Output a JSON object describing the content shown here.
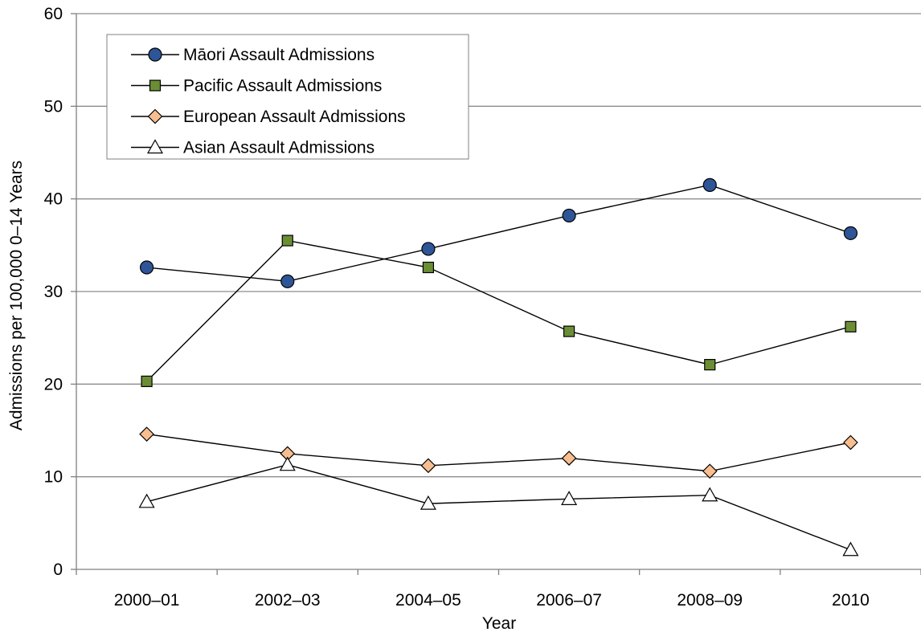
{
  "chart_data": {
    "type": "line",
    "title": "",
    "xlabel": "Year",
    "ylabel": "Admissions per 100,000 0–14 Years",
    "categories": [
      "2000–01",
      "2002–03",
      "2004–05",
      "2006–07",
      "2008–09",
      "2010"
    ],
    "ylim": [
      0,
      60
    ],
    "yticks": [
      0,
      10,
      20,
      30,
      40,
      50,
      60
    ],
    "grid": true,
    "legend_position": "top-left",
    "series": [
      {
        "name": "Māori Assault Admissions",
        "marker": "circle",
        "color": "#2e5597",
        "values": [
          32.6,
          31.1,
          34.6,
          38.2,
          41.5,
          36.3
        ]
      },
      {
        "name": "Pacific Assault Admissions",
        "marker": "square",
        "color": "#6b8e35",
        "values": [
          20.3,
          35.5,
          32.6,
          25.7,
          22.1,
          26.2
        ]
      },
      {
        "name": "European Assault Admissions",
        "marker": "diamond",
        "color": "#f9be8f",
        "values": [
          14.6,
          12.5,
          11.2,
          12.0,
          10.6,
          13.7
        ]
      },
      {
        "name": "Asian Assault Admissions",
        "marker": "triangle",
        "color": "#ffffff",
        "values": [
          7.3,
          11.3,
          7.1,
          7.6,
          8.0,
          2.1
        ]
      }
    ]
  }
}
